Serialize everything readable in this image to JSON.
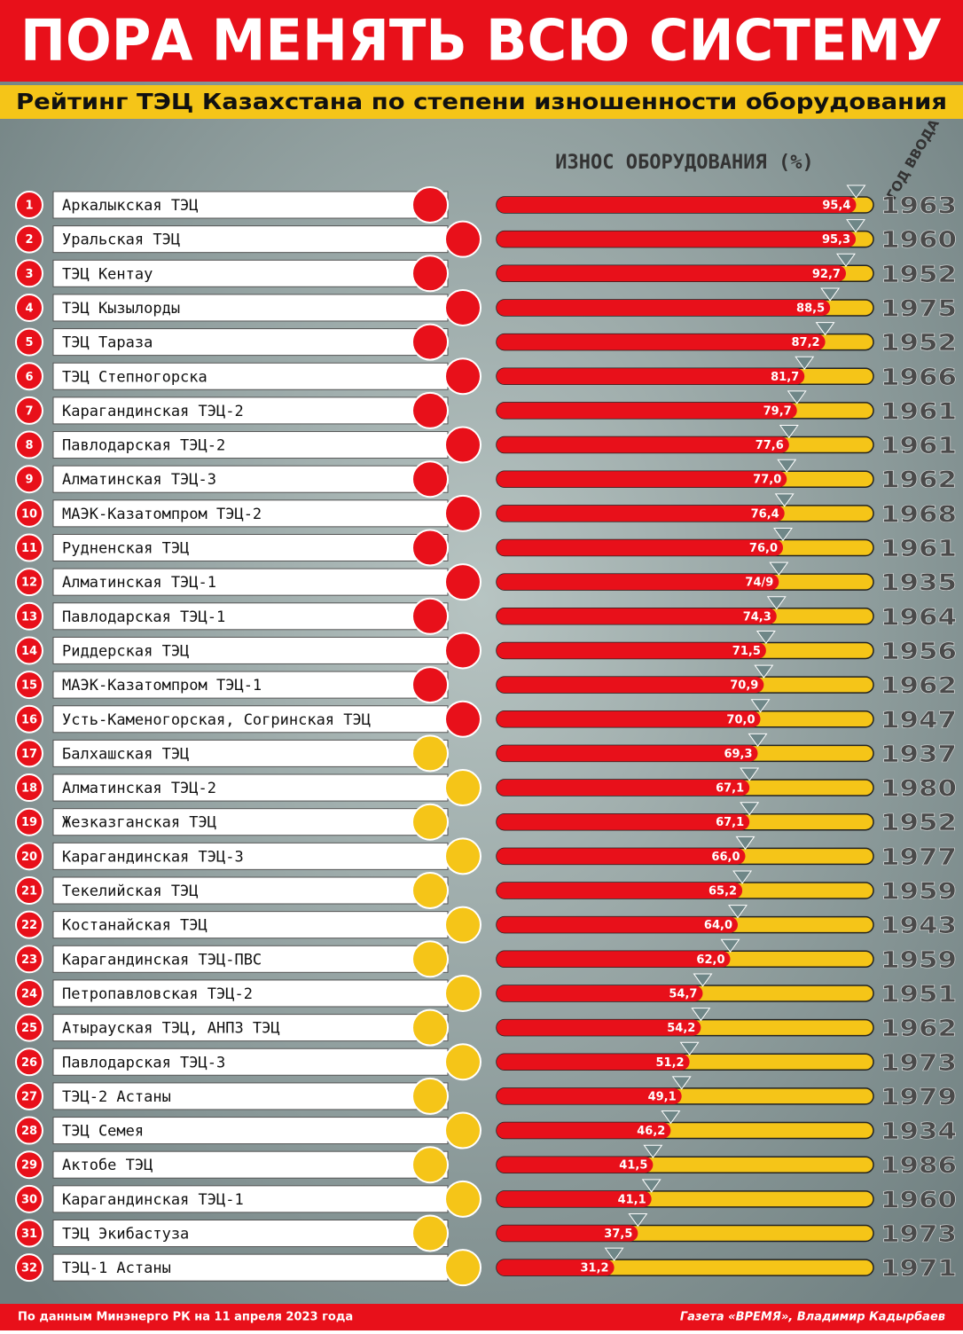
{
  "chart_data": {
    "type": "bar",
    "orientation": "horizontal",
    "title": "ПОРА МЕНЯТЬ ВСЮ СИСТЕМУ",
    "subtitle": "Рейтинг ТЭЦ Казахстана по степени изношенности оборудования",
    "value_axis_label": "ИЗНОС ОБОРУДОВАНИЯ (%)",
    "year_label": "ГОД ВВОДА",
    "ranks": [
      1,
      2,
      3,
      4,
      5,
      6,
      7,
      8,
      9,
      10,
      11,
      12,
      13,
      14,
      15,
      16,
      17,
      18,
      19,
      20,
      21,
      22,
      23,
      24,
      25,
      26,
      27,
      28,
      29,
      30,
      31,
      32
    ],
    "categories": [
      "Аркалыкская ТЭЦ",
      "Уральская ТЭЦ",
      "ТЭЦ Кентау",
      "ТЭЦ Кызылорды",
      "ТЭЦ Тараза",
      "ТЭЦ Степногорска",
      "Карагандинская ТЭЦ-2",
      "Павлодарская ТЭЦ-2",
      "Алматинская ТЭЦ-3",
      "МАЭК-Казатомпром ТЭЦ-2",
      "Рудненская ТЭЦ",
      "Алматинская ТЭЦ-1",
      "Павлодарская ТЭЦ-1",
      "Риддерская ТЭЦ",
      "МАЭК-Казатомпром ТЭЦ-1",
      "Усть-Каменогорская, Согринская ТЭЦ",
      "Балхашская ТЭЦ",
      "Алматинская ТЭЦ-2",
      "Жезказганская ТЭЦ",
      "Карагандинская ТЭЦ-3",
      "Текелийская ТЭЦ",
      "Костанайская ТЭЦ",
      "Карагандинская ТЭЦ-ПВС",
      "Петропавловская ТЭЦ-2",
      "Атырауская ТЭЦ, АНПЗ ТЭЦ",
      "Павлодарская ТЭЦ-3",
      "ТЭЦ-2 Астаны",
      "ТЭЦ Семея",
      "Актобе ТЭЦ",
      "Карагандинская ТЭЦ-1",
      "ТЭЦ Экибастуза",
      "ТЭЦ-1 Астаны"
    ],
    "values": [
      95.4,
      95.3,
      92.7,
      88.5,
      87.2,
      81.7,
      79.7,
      77.6,
      77.0,
      76.4,
      76.0,
      74.9,
      74.3,
      71.5,
      70.9,
      70.0,
      69.3,
      67.1,
      67.1,
      66.0,
      65.2,
      64.0,
      62.0,
      54.7,
      54.2,
      51.2,
      49.1,
      46.2,
      41.5,
      41.1,
      37.5,
      31.2
    ],
    "value_labels": [
      "95,4",
      "95,3",
      "92,7",
      "88,5",
      "87,2",
      "81,7",
      "79,7",
      "77,6",
      "77,0",
      "76,4",
      "76,0",
      "74/9",
      "74,3",
      "71,5",
      "70,9",
      "70,0",
      "69,3",
      "67,1",
      "67,1",
      "66,0",
      "65,2",
      "64,0",
      "62,0",
      "54,7",
      "54,2",
      "51,2",
      "49,1",
      "46,2",
      "41,5",
      "41,1",
      "37,5",
      "31,2"
    ],
    "years": [
      1963,
      1960,
      1952,
      1975,
      1952,
      1966,
      1961,
      1961,
      1962,
      1968,
      1961,
      1935,
      1964,
      1956,
      1962,
      1947,
      1937,
      1980,
      1952,
      1977,
      1959,
      1943,
      1959,
      1951,
      1962,
      1973,
      1979,
      1934,
      1986,
      1960,
      1973,
      1971
    ],
    "xlim": [
      0,
      100
    ],
    "color": "#e8101a",
    "remainder_color": "#f5c518",
    "source": "По данным Минэнерго РК на 11 апреля 2023 года",
    "credit": "Газета «ВРЕМЯ», Владимир Кадырбаев"
  }
}
